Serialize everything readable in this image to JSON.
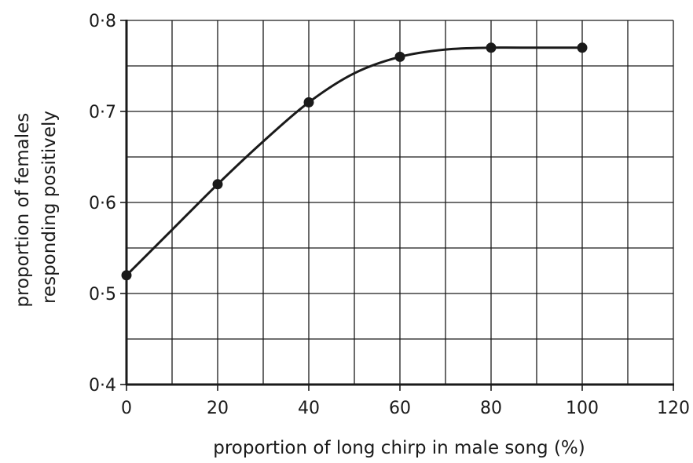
{
  "chart_data": {
    "type": "line",
    "title": "",
    "xlabel": "proportion of long chirp in male song (%)",
    "ylabel_lines": [
      "proportion of females",
      "responding positively"
    ],
    "xlim": [
      0,
      120
    ],
    "ylim": [
      0.4,
      0.8
    ],
    "x_ticks": [
      0,
      20,
      40,
      60,
      80,
      100,
      120
    ],
    "x_tick_labels": [
      "0",
      "20",
      "40",
      "60",
      "80",
      "100",
      "120"
    ],
    "x_minor_step": 10,
    "y_ticks": [
      0.4,
      0.5,
      0.6,
      0.7,
      0.8
    ],
    "y_tick_labels": [
      "0·4",
      "0·5",
      "0·6",
      "0·7",
      "0·8"
    ],
    "y_minor_step": 0.05,
    "grid": true,
    "legend": "none",
    "series": [
      {
        "x": [
          0,
          20,
          40,
          60,
          80,
          100
        ],
        "y": [
          0.52,
          0.62,
          0.71,
          0.76,
          0.77,
          0.77
        ],
        "curve_through_x": [
          0,
          10,
          20,
          30,
          40,
          50,
          60,
          70,
          80,
          90,
          100
        ],
        "curve_through_y": [
          0.52,
          0.57,
          0.62,
          0.667,
          0.71,
          0.742,
          0.76,
          0.768,
          0.77,
          0.77,
          0.77
        ]
      }
    ],
    "color": "#1a1a1a"
  }
}
